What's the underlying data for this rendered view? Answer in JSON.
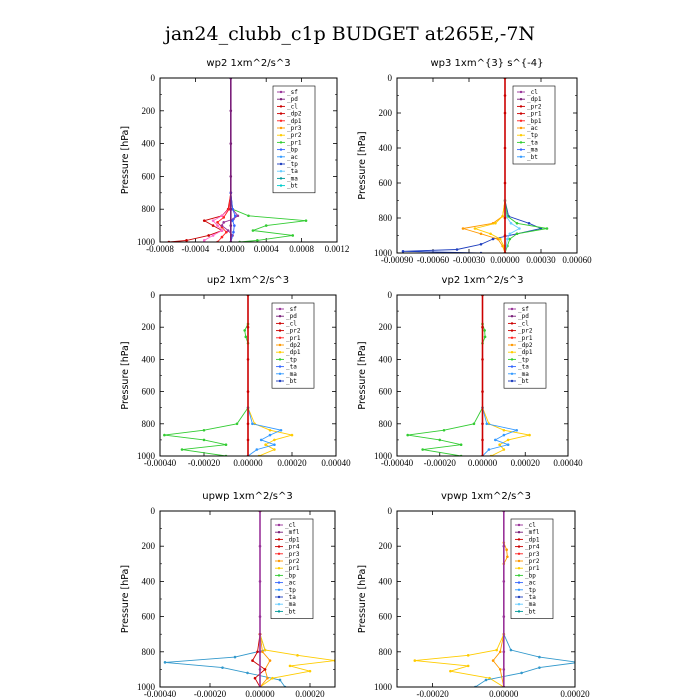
{
  "figure_title": "jan24_clubb_c1p  BUDGET at265E,-7N",
  "chart_data": [
    {
      "type": "line",
      "title": "wp2  1xm^2/s^3",
      "ylabel": "Pressure [hPa]",
      "ylim": [
        1000,
        0
      ],
      "yticks": [
        0,
        200,
        400,
        600,
        800,
        1000
      ],
      "xlim": [
        -0.0008,
        0.0012
      ],
      "xtick_values": [
        -0.0008,
        -0.0004,
        0.0,
        0.0004,
        0.0008,
        0.0012
      ],
      "xtick_labels": [
        "-0.0008",
        "-0.0004",
        "-0.0000",
        "0.0004",
        "0.0008",
        "0.0012"
      ],
      "legend": [
        "_sf",
        "_pd",
        "_cl",
        "_dp2",
        "_dp1",
        "_pr3",
        "_pr2",
        "_pr1",
        "_bp",
        "_ac",
        "_tp",
        "_ta",
        "_ma",
        "_bt"
      ],
      "series": [
        {
          "name": "_bp",
          "color": "#33cc33",
          "pressure": [
            0,
            700,
            800,
            840,
            870,
            900,
            930,
            960,
            990,
            1000
          ],
          "x": [
            0,
            0,
            2e-05,
            0.0002,
            0.00085,
            0.0004,
            0.00025,
            0.0007,
            0.0003,
            0.0001
          ]
        },
        {
          "name": "_dp1",
          "color": "#cc0000",
          "pressure": [
            0,
            700,
            800,
            840,
            870,
            900,
            930,
            960,
            990,
            1000
          ],
          "x": [
            0,
            0,
            -3e-05,
            -0.0001,
            -0.0003,
            -0.0002,
            -0.0001,
            -0.00025,
            -0.0005,
            -0.0007
          ]
        },
        {
          "name": "_pr1",
          "color": "#ff66cc",
          "pressure": [
            0,
            700,
            800,
            840,
            870,
            900,
            930,
            960,
            990,
            1000
          ],
          "x": [
            0,
            0,
            -2e-05,
            -0.0001,
            -0.0002,
            -0.00015,
            -0.0001,
            -0.0002,
            -0.0003,
            -0.0003
          ]
        },
        {
          "name": "_cl",
          "color": "#ff2222",
          "pressure": [
            0,
            700,
            800,
            850,
            880,
            910,
            940,
            970,
            1000
          ],
          "x": [
            0,
            0,
            -2e-05,
            -8e-05,
            -0.00015,
            -0.0001,
            -5e-05,
            -0.0001,
            -0.00015
          ]
        },
        {
          "name": "_dp2",
          "color": "#993399",
          "pressure": [
            0,
            700,
            800,
            840,
            860,
            880,
            900,
            930,
            960,
            1000
          ],
          "x": [
            0,
            0,
            2e-05,
            8e-05,
            3e-05,
            -8e-05,
            -0.0001,
            -3e-05,
            2e-05,
            0
          ]
        },
        {
          "name": "_ac",
          "color": "#3366ff",
          "pressure": [
            0,
            700,
            800,
            840,
            870,
            900,
            940,
            1000
          ],
          "x": [
            0,
            0,
            2e-05,
            5e-05,
            2e-05,
            4e-05,
            3e-05,
            0
          ]
        },
        {
          "name": "_pd",
          "color": "#7a1f7a",
          "pressure": [
            0,
            200,
            400,
            600,
            800,
            900,
            1000
          ],
          "x": [
            0,
            0,
            0,
            0,
            0,
            0,
            0
          ]
        }
      ]
    },
    {
      "type": "line",
      "title": "wp3  1xm^{3} s^{-4}",
      "ylabel": "Pressure [hPa]",
      "ylim": [
        1000,
        0
      ],
      "yticks": [
        0,
        200,
        400,
        600,
        800,
        1000
      ],
      "xlim": [
        -0.0009,
        0.0006
      ],
      "xtick_values": [
        -0.0009,
        -0.0006,
        -0.0003,
        0.0,
        0.0003,
        0.0006
      ],
      "xtick_labels": [
        "-0.00090",
        "-0.00060",
        "-0.00030",
        "0.00000",
        "0.00030",
        "0.00060"
      ],
      "legend": [
        "_cl",
        "_dp1",
        "_pr2",
        "_pr1",
        "_bp1",
        "_ac",
        "_tp",
        "_ta",
        "_ma",
        "_bt"
      ],
      "series": [
        {
          "name": "_tp",
          "color": "#1f3fbf",
          "pressure": [
            0,
            700,
            790,
            830,
            860,
            890,
            920,
            950,
            980,
            990,
            1000
          ],
          "x": [
            0,
            0,
            3e-05,
            0.0002,
            0.0003,
            0.0001,
            -0.0001,
            -0.0002,
            -0.0004,
            -0.00085,
            -0.0002
          ]
        },
        {
          "name": "_bp1",
          "color": "#33cc33",
          "pressure": [
            0,
            700,
            790,
            830,
            860,
            890,
            920,
            960,
            1000
          ],
          "x": [
            0,
            0,
            2e-05,
            0.0001,
            0.00035,
            0.0001,
            4e-05,
            2e-05,
            0
          ]
        },
        {
          "name": "_pr2",
          "color": "#ff9900",
          "pressure": [
            0,
            700,
            790,
            830,
            860,
            890,
            920,
            960,
            1000
          ],
          "x": [
            0,
            0,
            -2e-05,
            -0.0001,
            -0.00035,
            -0.0002,
            -6e-05,
            -2e-05,
            0
          ]
        },
        {
          "name": "_pr1",
          "color": "#ffcc00",
          "pressure": [
            0,
            700,
            790,
            830,
            860,
            890,
            920,
            960,
            1000
          ],
          "x": [
            0,
            0,
            -2e-05,
            -8e-05,
            -0.00025,
            -0.00012,
            -4e-05,
            -1e-05,
            0
          ]
        },
        {
          "name": "_ac",
          "color": "#66ccff",
          "pressure": [
            0,
            700,
            790,
            830,
            860,
            890,
            920,
            960,
            1000
          ],
          "x": [
            0,
            0,
            1e-05,
            5e-05,
            0.00012,
            4e-05,
            2e-05,
            1e-05,
            0
          ]
        },
        {
          "name": "_dp1",
          "color": "#cc0000",
          "pressure": [
            0,
            100,
            200,
            400,
            600,
            800,
            900,
            1000
          ],
          "x": [
            0,
            0,
            0,
            0,
            0,
            0,
            0,
            0
          ]
        }
      ]
    },
    {
      "type": "line",
      "title": "up2  1xm^2/s^3",
      "ylabel": "Pressure [hPa]",
      "ylim": [
        1000,
        0
      ],
      "yticks": [
        0,
        200,
        400,
        600,
        800,
        1000
      ],
      "xlim": [
        -0.0004,
        0.0004
      ],
      "xtick_values": [
        -0.0004,
        -0.0002,
        0.0,
        0.0002,
        0.0004
      ],
      "xtick_labels": [
        "-0.00040",
        "-0.00020",
        "0.00000",
        "0.00020",
        "0.00040"
      ],
      "legend": [
        "_sf",
        "_pd",
        "_cl",
        "_pr2",
        "_pr1",
        "_dp2",
        "_dp1",
        "_tp",
        "_ta",
        "_ma",
        "_bt"
      ],
      "series": [
        {
          "name": "_pr2",
          "color": "#33cc33",
          "pressure": [
            0,
            180,
            220,
            260,
            300,
            700,
            800,
            840,
            870,
            900,
            930,
            960,
            1000
          ],
          "x": [
            0,
            0,
            -1.5e-05,
            -1e-05,
            0,
            0,
            -5e-05,
            -0.0002,
            -0.00038,
            -0.0002,
            -0.0001,
            -0.0003,
            -0.0001
          ]
        },
        {
          "name": "_pr1",
          "color": "#ffcc00",
          "pressure": [
            0,
            700,
            800,
            840,
            870,
            900,
            930,
            960,
            1000
          ],
          "x": [
            0,
            0,
            3e-05,
            0.0001,
            0.0002,
            0.00012,
            8e-05,
            0.00012,
            5e-05
          ]
        },
        {
          "name": "_tp",
          "color": "#3399ff",
          "pressure": [
            0,
            700,
            800,
            840,
            870,
            900,
            930,
            960,
            1000
          ],
          "x": [
            0,
            0,
            2e-05,
            0.00015,
            0.0001,
            6e-05,
            0.00012,
            4e-05,
            0
          ]
        },
        {
          "name": "_pd",
          "color": "#cc0000",
          "pressure": [
            0,
            200,
            400,
            600,
            800,
            900,
            1000
          ],
          "x": [
            0,
            0,
            0,
            0,
            0,
            0,
            0
          ]
        }
      ]
    },
    {
      "type": "line",
      "title": "vp2  1xm^2/s^3",
      "ylabel": "Pressure [hPa]",
      "ylim": [
        1000,
        0
      ],
      "yticks": [
        0,
        200,
        400,
        600,
        800,
        1000
      ],
      "xlim": [
        -0.0004,
        0.0004
      ],
      "xtick_values": [
        -0.0004,
        -0.0002,
        0.0,
        0.0002,
        0.0004
      ],
      "xtick_labels": [
        "-0.00040",
        "-0.00020",
        "0.00000",
        "0.00020",
        "0.00040"
      ],
      "legend": [
        "_sf",
        "_pd",
        "_cl",
        "_pr2",
        "_pr1",
        "_dp2",
        "_dp1",
        "_tp",
        "_ta",
        "_ma",
        "_bt"
      ],
      "series": [
        {
          "name": "_pr2",
          "color": "#33cc33",
          "pressure": [
            0,
            180,
            220,
            260,
            300,
            700,
            800,
            840,
            870,
            900,
            930,
            960,
            1000
          ],
          "x": [
            0,
            0,
            1e-05,
            1.2e-05,
            0,
            0,
            -4e-05,
            -0.00018,
            -0.00035,
            -0.0002,
            -0.0001,
            -0.00028,
            -0.0001
          ]
        },
        {
          "name": "_pr1",
          "color": "#ffcc00",
          "pressure": [
            0,
            700,
            800,
            840,
            870,
            900,
            930,
            960,
            1000
          ],
          "x": [
            0,
            0,
            3e-05,
            0.0001,
            0.00022,
            0.00012,
            8e-05,
            0.0001,
            4e-05
          ]
        },
        {
          "name": "_tp",
          "color": "#3399ff",
          "pressure": [
            0,
            700,
            800,
            840,
            870,
            900,
            930,
            960,
            1000
          ],
          "x": [
            0,
            0,
            2e-05,
            0.00016,
            0.0001,
            6e-05,
            0.00012,
            3e-05,
            0
          ]
        },
        {
          "name": "_pd",
          "color": "#cc0000",
          "pressure": [
            0,
            200,
            400,
            600,
            800,
            900,
            1000
          ],
          "x": [
            0,
            0,
            0,
            0,
            0,
            0,
            0
          ]
        }
      ]
    },
    {
      "type": "line",
      "title": "upwp  1xm^2/s^3",
      "ylabel": "Pressure [hPa]",
      "ylim": [
        1000,
        0
      ],
      "yticks": [
        0,
        200,
        400,
        600,
        800,
        1000
      ],
      "xlim": [
        -0.0004,
        0.0003
      ],
      "xtick_values": [
        -0.0004,
        -0.0002,
        0.0,
        0.0002
      ],
      "xtick_labels": [
        "-0.00040",
        "-0.00020",
        "0.00000",
        "0.00020"
      ],
      "legend": [
        "_cl",
        "_mfl",
        "_dp1",
        "_pr4",
        "_pr3",
        "_pr2",
        "_pr1",
        "_bp",
        "_ac",
        "_tp",
        "_ta",
        "_ma",
        "_bt"
      ],
      "series": [
        {
          "name": "_tp",
          "color": "#3399cc",
          "pressure": [
            0,
            700,
            790,
            830,
            860,
            890,
            920,
            960,
            1000
          ],
          "x": [
            0,
            0,
            2e-05,
            -0.0001,
            -0.00038,
            -0.00015,
            -5e-05,
            8e-05,
            0.0001
          ]
        },
        {
          "name": "_pr1",
          "color": "#ffcc00",
          "pressure": [
            0,
            700,
            790,
            820,
            850,
            880,
            910,
            950,
            1000
          ],
          "x": [
            0,
            0,
            2e-05,
            0.00015,
            0.0003,
            0.00012,
            0.0002,
            5e-05,
            0
          ]
        },
        {
          "name": "_pr2",
          "color": "#ff9900",
          "pressure": [
            0,
            700,
            800,
            850,
            900,
            950,
            1000
          ],
          "x": [
            0,
            0,
            1e-05,
            4e-05,
            2e-05,
            3e-05,
            0
          ]
        },
        {
          "name": "_dp1",
          "color": "#cc0000",
          "pressure": [
            0,
            700,
            800,
            850,
            900,
            950,
            1000
          ],
          "x": [
            0,
            0,
            -1e-05,
            -3e-05,
            2e-05,
            -2e-05,
            0
          ]
        },
        {
          "name": "_mfl",
          "color": "#993399",
          "pressure": [
            0,
            200,
            400,
            600,
            800,
            900,
            1000
          ],
          "x": [
            0,
            0,
            0,
            0,
            0,
            0,
            0
          ]
        }
      ]
    },
    {
      "type": "line",
      "title": "vpwp  1xm^2/s^3",
      "ylabel": "Pressure [hPa]",
      "ylim": [
        1000,
        0
      ],
      "yticks": [
        0,
        200,
        400,
        600,
        800,
        1000
      ],
      "xlim": [
        -0.0003,
        0.0002
      ],
      "xtick_values": [
        -0.0002,
        0.0,
        0.0002
      ],
      "xtick_labels": [
        "-0.00020",
        "0.00000",
        "0.00020"
      ],
      "legend": [
        "_cl",
        "_mfl",
        "_dp1",
        "_pr4",
        "_pr3",
        "_pr2",
        "_pr1",
        "_bp",
        "_ac",
        "_tp",
        "_ta",
        "_ma",
        "_bt"
      ],
      "series": [
        {
          "name": "_pr1",
          "color": "#ffcc00",
          "pressure": [
            0,
            700,
            790,
            820,
            850,
            880,
            910,
            950,
            1000
          ],
          "x": [
            0,
            0,
            -2e-05,
            -0.0001,
            -0.00025,
            -0.0001,
            -0.00015,
            -4e-05,
            0
          ]
        },
        {
          "name": "_tp",
          "color": "#3399cc",
          "pressure": [
            0,
            700,
            790,
            830,
            860,
            890,
            920,
            960,
            1000
          ],
          "x": [
            0,
            0,
            2e-05,
            0.0001,
            0.00021,
            0.0001,
            5e-05,
            -5e-05,
            -8e-05
          ]
        },
        {
          "name": "_pr2",
          "color": "#ff9900",
          "pressure": [
            0,
            180,
            220,
            260,
            300,
            700,
            800,
            850,
            900,
            1000
          ],
          "x": [
            0,
            0,
            8e-06,
            1e-05,
            0,
            0,
            -1e-05,
            -3e-05,
            -1e-05,
            0
          ]
        },
        {
          "name": "_mfl",
          "color": "#993399",
          "pressure": [
            0,
            200,
            400,
            600,
            800,
            900,
            1000
          ],
          "x": [
            0,
            0,
            0,
            0,
            0,
            0,
            0
          ]
        }
      ]
    }
  ]
}
